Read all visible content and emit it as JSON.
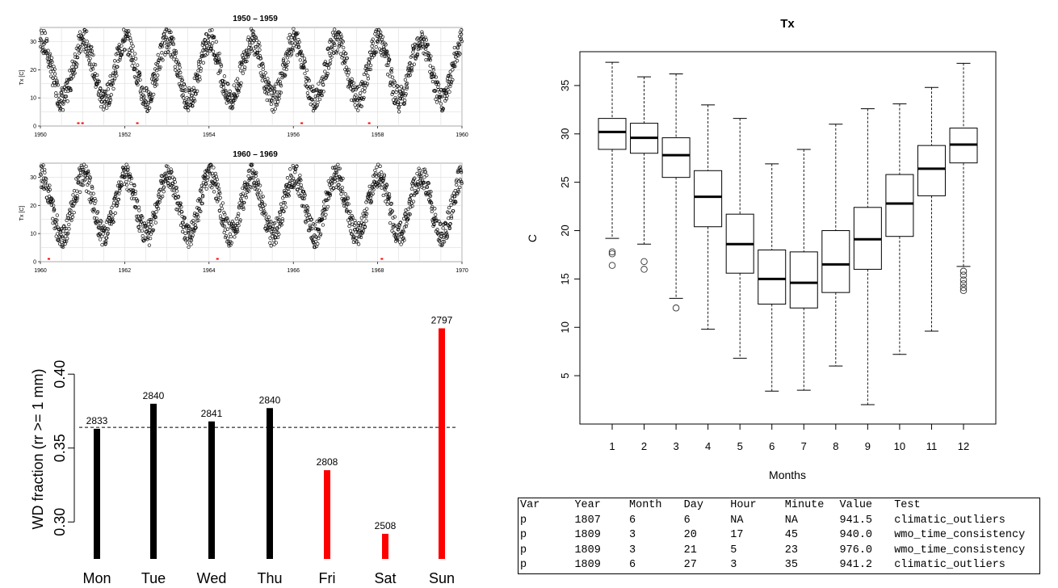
{
  "chart_data": [
    {
      "type": "scatter",
      "title": "1950 – 1959",
      "ylabel": "Tx [C]",
      "xlim": [
        1950,
        1960
      ],
      "ylim": [
        0,
        35
      ],
      "x_ticks": [
        "1950",
        "1952",
        "1954",
        "1956",
        "1958",
        "1960"
      ],
      "y_ticks": [
        "0",
        "10",
        "20",
        "30"
      ],
      "series": [
        {
          "name": "Tx daily",
          "description": "seasonal cycle, summer peaks ~30-34 C, winter troughs ~8-12 C, one cycle per year"
        },
        {
          "name": "missing/flagged (red)",
          "x": [
            1950.9,
            1951.0,
            1952.3,
            1956.2,
            1957.8
          ],
          "y": [
            1,
            1,
            1,
            1,
            1
          ]
        }
      ]
    },
    {
      "type": "scatter",
      "title": "1960 – 1969",
      "ylabel": "Tx [C]",
      "xlim": [
        1960,
        1970
      ],
      "ylim": [
        0,
        35
      ],
      "x_ticks": [
        "1960",
        "1962",
        "1964",
        "1966",
        "1968",
        "1970"
      ],
      "y_ticks": [
        "0",
        "10",
        "20",
        "30"
      ],
      "series": [
        {
          "name": "Tx daily",
          "description": "seasonal cycle, summer peaks ~30-35 C, winter troughs ~8-12 C, one cycle per year"
        },
        {
          "name": "missing/flagged (red)",
          "x": [
            1960.2,
            1964.2,
            1968.1
          ],
          "y": [
            1,
            1,
            1
          ]
        }
      ]
    },
    {
      "type": "bar",
      "title": "",
      "ylabel": "WD fraction (rr >= 1 mm)",
      "categories": [
        "Mon",
        "Tue",
        "Wed",
        "Thu",
        "Fri",
        "Sat",
        "Sun"
      ],
      "values": [
        0.363,
        0.38,
        0.368,
        0.377,
        0.335,
        0.292,
        0.431
      ],
      "counts": [
        "2833",
        "2840",
        "2841",
        "2840",
        "2808",
        "2508",
        "2797"
      ],
      "colors": [
        "#000000",
        "#000000",
        "#000000",
        "#000000",
        "#ff0000",
        "#ff0000",
        "#ff0000"
      ],
      "ylim": [
        0.275,
        0.44
      ],
      "y_ticks": [
        "0.30",
        "0.35",
        "0.40"
      ],
      "y_tick_values": [
        0.3,
        0.35,
        0.4
      ],
      "reference_line": 0.364
    },
    {
      "type": "boxplot",
      "title": "Tx",
      "xlabel": "Months",
      "ylabel": "C",
      "categories": [
        "1",
        "2",
        "3",
        "4",
        "5",
        "6",
        "7",
        "8",
        "9",
        "10",
        "11",
        "12"
      ],
      "ylim": [
        0,
        38.5
      ],
      "y_ticks": [
        "5",
        "10",
        "15",
        "20",
        "25",
        "30",
        "35"
      ],
      "y_tick_values": [
        5,
        10,
        15,
        20,
        25,
        30,
        35
      ],
      "boxes": [
        {
          "month": "1",
          "lower_whisker": 19.2,
          "q1": 28.4,
          "median": 30.2,
          "q3": 31.6,
          "upper_whisker": 37.4,
          "outliers": [
            17.6,
            17.8,
            16.4
          ]
        },
        {
          "month": "2",
          "lower_whisker": 18.6,
          "q1": 28.0,
          "median": 29.6,
          "q3": 31.1,
          "upper_whisker": 35.9,
          "outliers": [
            16.8,
            16.0
          ]
        },
        {
          "month": "3",
          "lower_whisker": 13.0,
          "q1": 25.5,
          "median": 27.8,
          "q3": 29.6,
          "upper_whisker": 36.2,
          "outliers": [
            12.0
          ]
        },
        {
          "month": "4",
          "lower_whisker": 9.8,
          "q1": 20.4,
          "median": 23.5,
          "q3": 26.2,
          "upper_whisker": 33.0,
          "outliers": []
        },
        {
          "month": "5",
          "lower_whisker": 6.8,
          "q1": 15.6,
          "median": 18.6,
          "q3": 21.7,
          "upper_whisker": 31.6,
          "outliers": []
        },
        {
          "month": "6",
          "lower_whisker": 3.4,
          "q1": 12.4,
          "median": 15.0,
          "q3": 18.0,
          "upper_whisker": 26.9,
          "outliers": []
        },
        {
          "month": "7",
          "lower_whisker": 3.5,
          "q1": 12.0,
          "median": 14.6,
          "q3": 17.8,
          "upper_whisker": 28.4,
          "outliers": []
        },
        {
          "month": "8",
          "lower_whisker": 6.0,
          "q1": 13.6,
          "median": 16.5,
          "q3": 20.0,
          "upper_whisker": 31.0,
          "outliers": []
        },
        {
          "month": "9",
          "lower_whisker": 2.0,
          "q1": 16.0,
          "median": 19.1,
          "q3": 22.4,
          "upper_whisker": 32.6,
          "outliers": []
        },
        {
          "month": "10",
          "lower_whisker": 7.2,
          "q1": 19.4,
          "median": 22.8,
          "q3": 25.8,
          "upper_whisker": 33.1,
          "outliers": []
        },
        {
          "month": "11",
          "lower_whisker": 9.6,
          "q1": 23.6,
          "median": 26.4,
          "q3": 28.8,
          "upper_whisker": 34.8,
          "outliers": []
        },
        {
          "month": "12",
          "lower_whisker": 16.3,
          "q1": 27.0,
          "median": 28.9,
          "q3": 30.6,
          "upper_whisker": 37.3,
          "outliers": [
            15.8,
            15.4,
            14.9,
            14.5,
            14.1,
            13.8
          ]
        }
      ]
    }
  ],
  "table": {
    "headers": [
      "Var",
      "Year",
      "Month",
      "Day",
      "Hour",
      "Minute",
      "Value",
      "Test"
    ],
    "rows": [
      [
        "p",
        "1807",
        "6",
        "6",
        "NA",
        "NA",
        "941.5",
        "climatic_outliers"
      ],
      [
        "p",
        "1809",
        "3",
        "20",
        "17",
        "45",
        "940.0",
        "wmo_time_consistency"
      ],
      [
        "p",
        "1809",
        "3",
        "21",
        "5",
        "23",
        "976.0",
        "wmo_time_consistency"
      ],
      [
        "p",
        "1809",
        "6",
        "27",
        "3",
        "35",
        "941.2",
        "climatic_outliers"
      ]
    ]
  }
}
